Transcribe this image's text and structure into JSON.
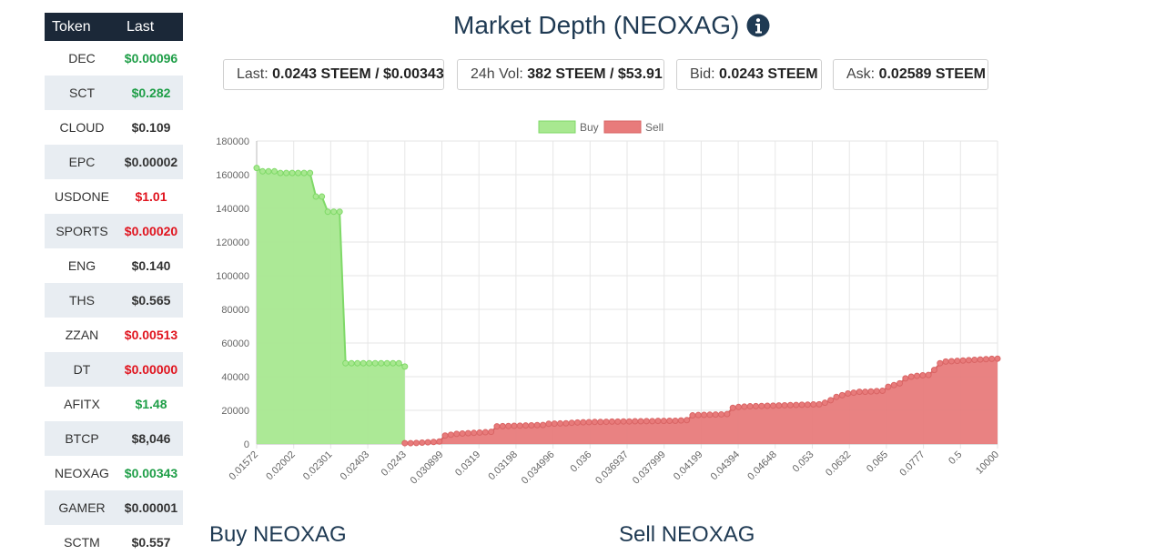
{
  "token_table": {
    "header_token": "Token",
    "header_last": "Last",
    "rows": [
      {
        "symbol": "DEC",
        "price": "$0.00096",
        "trend": "up"
      },
      {
        "symbol": "SCT",
        "price": "$0.282",
        "trend": "up"
      },
      {
        "symbol": "CLOUD",
        "price": "$0.109",
        "trend": "flat"
      },
      {
        "symbol": "EPC",
        "price": "$0.00002",
        "trend": "flat"
      },
      {
        "symbol": "USDONE",
        "price": "$1.01",
        "trend": "down"
      },
      {
        "symbol": "SPORTS",
        "price": "$0.00020",
        "trend": "down"
      },
      {
        "symbol": "ENG",
        "price": "$0.140",
        "trend": "flat"
      },
      {
        "symbol": "THS",
        "price": "$0.565",
        "trend": "flat"
      },
      {
        "symbol": "ZZAN",
        "price": "$0.00513",
        "trend": "down"
      },
      {
        "symbol": "DT",
        "price": "$0.00000",
        "trend": "down"
      },
      {
        "symbol": "AFITX",
        "price": "$1.48",
        "trend": "up"
      },
      {
        "symbol": "BTCP",
        "price": "$8,046",
        "trend": "flat"
      },
      {
        "symbol": "NEOXAG",
        "price": "$0.00343",
        "trend": "up"
      },
      {
        "symbol": "GAMER",
        "price": "$0.00001",
        "trend": "flat"
      },
      {
        "symbol": "SCTM",
        "price": "$0.557",
        "trend": "flat"
      }
    ]
  },
  "title": "Market Depth (NEOXAG)",
  "info_icon": "info-circle-icon",
  "stats": {
    "last_label": "Last:",
    "last_value": "0.0243 STEEM / $0.00343",
    "vol_label": "24h Vol:",
    "vol_value": "382 STEEM / $53.91",
    "bid_label": "Bid:",
    "bid_value": "0.0243 STEEM",
    "ask_label": "Ask:",
    "ask_value": "0.02589 STEEM"
  },
  "sections": {
    "buy_title": "Buy NEOXAG",
    "sell_title": "Sell NEOXAG"
  },
  "colors": {
    "up": "#1e9e47",
    "down": "#e0141e",
    "header_bg": "#1b2838",
    "title": "#1f3a53",
    "buy_fill": "#a8e890",
    "buy_line": "#7fd968",
    "sell_fill": "#e87b7b",
    "sell_line": "#d96565"
  },
  "chart_data": {
    "type": "area",
    "legend": [
      "Buy",
      "Sell"
    ],
    "legend_position": "top-center",
    "grid": true,
    "ylim": [
      0,
      180000
    ],
    "y_ticks": [
      0,
      20000,
      40000,
      60000,
      80000,
      100000,
      120000,
      140000,
      160000,
      180000
    ],
    "x_tick_labels": [
      "0.01572",
      "0.02002",
      "0.02301",
      "0.02403",
      "0.0243",
      "0.030899",
      "0.0319",
      "0.03198",
      "0.034996",
      "0.036",
      "0.036937",
      "0.037999",
      "0.04199",
      "0.04394",
      "0.04648",
      "0.053",
      "0.0632",
      "0.065",
      "0.0777",
      "0.5",
      "10000"
    ],
    "series": [
      {
        "name": "Buy",
        "values": [
          164000,
          162000,
          162000,
          162000,
          161000,
          161000,
          161000,
          161000,
          161000,
          161000,
          147000,
          147000,
          138000,
          138000,
          138000,
          48000,
          48000,
          48000,
          48000,
          48000,
          48000,
          48000,
          48000,
          48000,
          48000,
          46000
        ]
      },
      {
        "name": "Sell",
        "values": [
          500,
          500,
          600,
          800,
          1000,
          1200,
          1500,
          5000,
          5500,
          6000,
          6200,
          6400,
          6600,
          6800,
          7000,
          7200,
          10500,
          10600,
          10700,
          10800,
          10900,
          11000,
          11100,
          11200,
          11300,
          12000,
          12100,
          12200,
          12300,
          12600,
          12800,
          12900,
          13000,
          13100,
          13100,
          13200,
          13300,
          13300,
          13400,
          13400,
          13500,
          13500,
          13600,
          13600,
          13700,
          13700,
          13800,
          13800,
          14000,
          14200,
          17000,
          17200,
          17300,
          17400,
          17500,
          17600,
          17800,
          21500,
          22000,
          22200,
          22400,
          22500,
          22600,
          22700,
          22800,
          22900,
          23000,
          23100,
          23200,
          23300,
          23400,
          23500,
          23600,
          24500,
          26000,
          28000,
          29000,
          30000,
          30500,
          31000,
          31000,
          31200,
          31400,
          31600,
          34000,
          35000,
          36000,
          39000,
          40000,
          40500,
          40800,
          41000,
          44000,
          48000,
          49000,
          49200,
          49400,
          49600,
          49800,
          50000,
          50200,
          50400,
          50600,
          50700
        ]
      }
    ]
  }
}
